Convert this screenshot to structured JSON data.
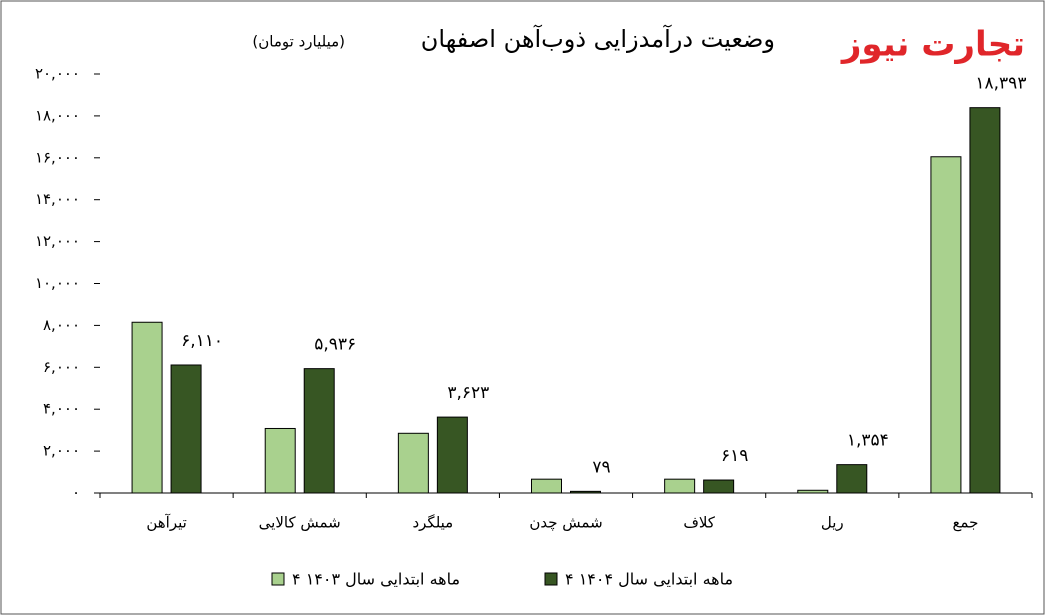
{
  "chart_data": {
    "type": "bar",
    "title": "وضعیت درآمدزایی ذوب‌آهن اصفهان",
    "subtitle": "(میلیارد تومان)",
    "logo": "تجارت نیوز",
    "categories": [
      "تیرآهن",
      "شمش کالایی",
      "میلگرد",
      "شمش چدن",
      "کلاف",
      "ریل",
      "جمع"
    ],
    "series": [
      {
        "name": "۴ ماهه ابتدایی سال ۱۴۰۳",
        "color": "#a9d18e",
        "values": [
          8150,
          3080,
          2850,
          660,
          660,
          130,
          16050
        ]
      },
      {
        "name": "۴ ماهه ابتدایی سال ۱۴۰۴",
        "color": "#375623",
        "values": [
          6110,
          5936,
          3623,
          79,
          619,
          1354,
          18393
        ],
        "value_labels": [
          "۶,۱۱۰",
          "۵,۹۳۶",
          "۳,۶۲۳",
          "۷۹",
          "۶۱۹",
          "۱,۳۵۴",
          "۱۸,۳۹۳"
        ]
      }
    ],
    "ylim": [
      0,
      20000
    ],
    "yticks": [
      {
        "value": 0,
        "label": "۰"
      },
      {
        "value": 2000,
        "label": "۲,۰۰۰"
      },
      {
        "value": 4000,
        "label": "۴,۰۰۰"
      },
      {
        "value": 6000,
        "label": "۶,۰۰۰"
      },
      {
        "value": 8000,
        "label": "۸,۰۰۰"
      },
      {
        "value": 10000,
        "label": "۱۰,۰۰۰"
      },
      {
        "value": 12000,
        "label": "۱۲,۰۰۰"
      },
      {
        "value": 14000,
        "label": "۱۴,۰۰۰"
      },
      {
        "value": 16000,
        "label": "۱۶,۰۰۰"
      },
      {
        "value": 18000,
        "label": "۱۸,۰۰۰"
      },
      {
        "value": 20000,
        "label": "۲۰,۰۰۰"
      }
    ],
    "grid": false,
    "legend": "bottom"
  }
}
